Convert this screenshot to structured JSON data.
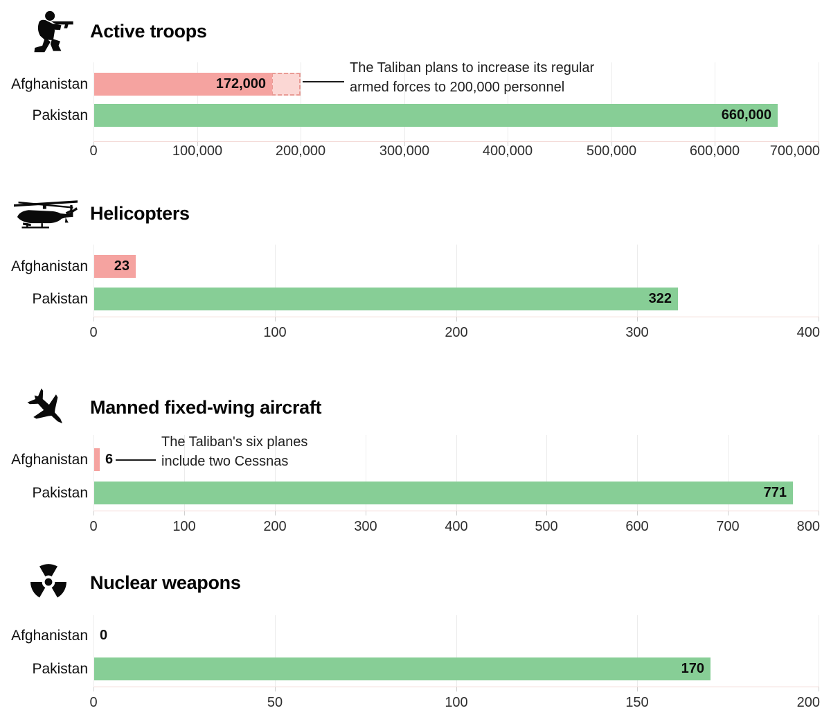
{
  "chart_data": [
    {
      "type": "bar",
      "title": "Active troops",
      "icon": "soldier-icon",
      "categories": [
        "Afghanistan",
        "Pakistan"
      ],
      "values": [
        172000,
        660000
      ],
      "value_labels": [
        "172,000",
        "660,000"
      ],
      "series_colors": [
        "#F5A3A0",
        "#87CE96"
      ],
      "xlim": [
        0,
        700000
      ],
      "tick_values": [
        0,
        100000,
        200000,
        300000,
        400000,
        500000,
        600000,
        700000
      ],
      "tick_labels": [
        "0",
        "100,000",
        "200,000",
        "300,000",
        "400,000",
        "500,000",
        "600,000",
        "700,000"
      ],
      "grid": true,
      "legend": "none",
      "projection": {
        "to_value": 200000,
        "fill": "#FBD7D4",
        "border_color": "#E99B95"
      },
      "annotation": {
        "lines": [
          "The Taliban plans to increase its regular",
          "armed forces to 200,000 personnel"
        ]
      }
    },
    {
      "type": "bar",
      "title": "Helicopters",
      "icon": "helicopter-icon",
      "categories": [
        "Afghanistan",
        "Pakistan"
      ],
      "values": [
        23,
        322
      ],
      "value_labels": [
        "23",
        "322"
      ],
      "series_colors": [
        "#F5A3A0",
        "#87CE96"
      ],
      "xlim": [
        0,
        400
      ],
      "tick_values": [
        0,
        100,
        200,
        300,
        400
      ],
      "tick_labels": [
        "0",
        "100",
        "200",
        "300",
        "400"
      ],
      "grid": true,
      "legend": "none"
    },
    {
      "type": "bar",
      "title": "Manned fixed-wing aircraft",
      "icon": "fighter-jet-icon",
      "categories": [
        "Afghanistan",
        "Pakistan"
      ],
      "values": [
        6,
        771
      ],
      "value_labels": [
        "6",
        "771"
      ],
      "series_colors": [
        "#F5A3A0",
        "#87CE96"
      ],
      "xlim": [
        0,
        800
      ],
      "tick_values": [
        0,
        100,
        200,
        300,
        400,
        500,
        600,
        700,
        800
      ],
      "tick_labels": [
        "0",
        "100",
        "200",
        "300",
        "400",
        "500",
        "600",
        "700",
        "800"
      ],
      "grid": true,
      "legend": "none",
      "annotation": {
        "lines": [
          "The Taliban's six planes",
          "include two Cessnas"
        ]
      }
    },
    {
      "type": "bar",
      "title": "Nuclear weapons",
      "icon": "radiation-icon",
      "categories": [
        "Afghanistan",
        "Pakistan"
      ],
      "values": [
        0,
        170
      ],
      "value_labels": [
        "0",
        "170"
      ],
      "series_colors": [
        "#F5A3A0",
        "#87CE96"
      ],
      "xlim": [
        0,
        200
      ],
      "tick_values": [
        0,
        50,
        100,
        150,
        200
      ],
      "tick_labels": [
        "0",
        "50",
        "100",
        "150",
        "200"
      ],
      "grid": true,
      "legend": "none"
    }
  ],
  "colors": {
    "afghanistan_bar": "#F5A3A0",
    "pakistan_bar": "#87CE96",
    "projection_fill": "#FBD7D4",
    "projection_border": "#E99B95",
    "gridline": "#ECECEC",
    "axis_baseline": "#F2D6D2",
    "icon": "#0A0A0A",
    "text": "#111111"
  }
}
